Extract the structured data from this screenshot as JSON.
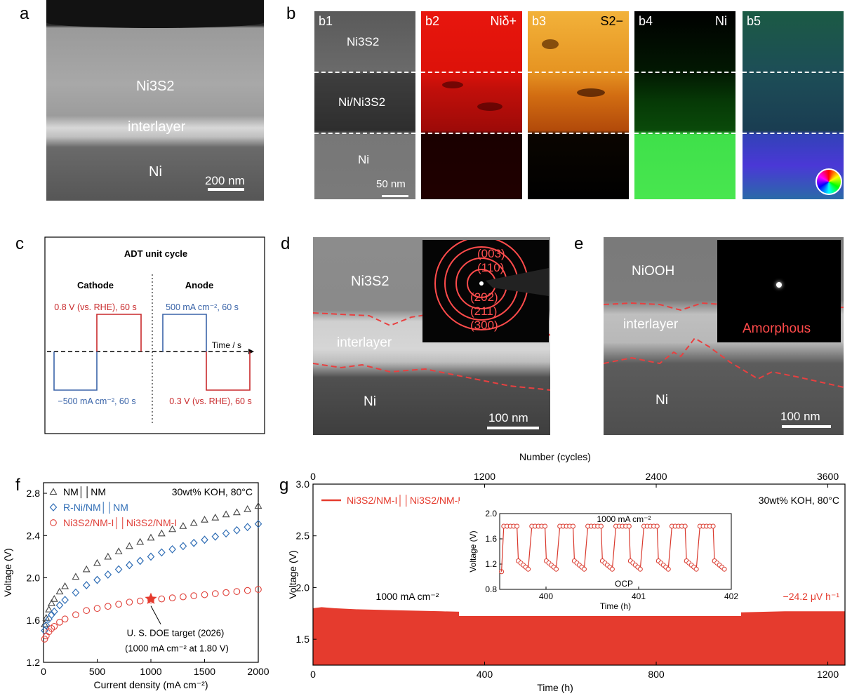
{
  "panels": {
    "a": "a",
    "b": "b",
    "c": "c",
    "d": "d",
    "e": "e",
    "f": "f",
    "g": "g"
  },
  "panel_a": {
    "layer_top": "Ni3S2",
    "layer_mid": "interlayer",
    "layer_bottom": "Ni",
    "scalebar": "200 nm"
  },
  "panel_b": {
    "tiles": [
      {
        "id": "b1",
        "label": "b1",
        "element": ""
      },
      {
        "id": "b2",
        "label": "b2",
        "element": "Niδ+"
      },
      {
        "id": "b3",
        "label": "b3",
        "element": "S2−"
      },
      {
        "id": "b4",
        "label": "b4",
        "element": "Ni"
      },
      {
        "id": "b5",
        "label": "b5",
        "element": ""
      }
    ],
    "b1_layers": [
      "Ni3S2",
      "Ni/Ni3S2",
      "Ni"
    ],
    "scalebar": "50 nm"
  },
  "panel_c": {
    "title": "ADT unit cycle",
    "cathode": "Cathode",
    "anode": "Anode",
    "time_axis": "Time / s",
    "cathode_high": "0.8 V (vs. RHE), 60 s",
    "cathode_low": "−500 mA cm⁻², 60 s",
    "anode_high": "500 mA cm⁻², 60 s",
    "anode_low": "0.3 V (vs. RHE), 60 s",
    "colors": {
      "red": "#c8292b",
      "blue": "#3a64a8"
    }
  },
  "panel_d": {
    "layer_top": "Ni3S2",
    "layer_mid": "interlayer",
    "layer_bottom": "Ni",
    "scalebar": "100 nm",
    "diffraction": [
      "(003)",
      "(110)",
      "(202)",
      "(211)",
      "(300)"
    ]
  },
  "panel_e": {
    "layer_top": "NiOOH",
    "layer_mid": "interlayer",
    "layer_bottom": "Ni",
    "scalebar": "100 nm",
    "inset": "Amorphous"
  },
  "chart_data": [
    {
      "type": "scatter",
      "panel": "f",
      "condition": "30wt% KOH, 80°C",
      "xlabel": "Current density (mA cm⁻²)",
      "ylabel": "Voltage (V)",
      "xlim": [
        0,
        2000
      ],
      "ylim": [
        1.2,
        2.9
      ],
      "xticks": [
        0,
        500,
        1000,
        1500,
        2000
      ],
      "yticks": [
        1.2,
        1.6,
        2.0,
        2.4,
        2.8
      ],
      "x": [
        10,
        25,
        50,
        75,
        100,
        150,
        200,
        300,
        400,
        500,
        600,
        700,
        800,
        900,
        1000,
        1100,
        1200,
        1300,
        1400,
        1500,
        1600,
        1700,
        1800,
        1900,
        2000
      ],
      "series": [
        {
          "name": "NM││NM",
          "marker": "triangle",
          "color": "#444444",
          "values": [
            1.56,
            1.62,
            1.7,
            1.76,
            1.8,
            1.87,
            1.92,
            2.01,
            2.08,
            2.14,
            2.2,
            2.25,
            2.3,
            2.34,
            2.38,
            2.42,
            2.46,
            2.49,
            2.52,
            2.55,
            2.57,
            2.6,
            2.62,
            2.65,
            2.68
          ]
        },
        {
          "name": "R-Ni/NM││NM",
          "marker": "diamond",
          "color": "#2f6db5",
          "values": [
            1.5,
            1.55,
            1.61,
            1.65,
            1.68,
            1.74,
            1.79,
            1.86,
            1.93,
            1.98,
            2.03,
            2.08,
            2.12,
            2.16,
            2.2,
            2.24,
            2.27,
            2.3,
            2.33,
            2.36,
            2.39,
            2.42,
            2.45,
            2.48,
            2.51
          ]
        },
        {
          "name": "Ni3S2/NM-I││Ni3S2/NM-I",
          "marker": "circle",
          "color": "#e0413a",
          "values": [
            1.42,
            1.45,
            1.49,
            1.52,
            1.54,
            1.58,
            1.61,
            1.65,
            1.69,
            1.71,
            1.73,
            1.75,
            1.77,
            1.78,
            1.79,
            1.8,
            1.81,
            1.82,
            1.83,
            1.84,
            1.85,
            1.86,
            1.87,
            1.88,
            1.89
          ]
        }
      ],
      "target": {
        "x": 1000,
        "y": 1.8,
        "label1": "U. S. DOE target (2026)",
        "label2": "(1000 mA cm⁻² at 1.80 V)"
      }
    },
    {
      "type": "area",
      "panel": "g",
      "condition": "30wt% KOH, 80°C",
      "legend": "Ni3S2/NM-I││Ni3S2/NM-I",
      "xlabel": "Time (h)",
      "ylabel": "Voltage (V)",
      "top_xlabel": "Number (cycles)",
      "xlim": [
        0,
        1240
      ],
      "ylim": [
        1.25,
        3.0
      ],
      "xticks": [
        0,
        400,
        800,
        1200
      ],
      "top_xticks": [
        0,
        1200,
        2400,
        3600
      ],
      "yticks": [
        1.5,
        2.0,
        2.5,
        3.0
      ],
      "x": [
        0,
        20,
        50,
        100,
        200,
        300,
        400,
        500,
        600,
        700,
        800,
        900,
        1000,
        1100,
        1240
      ],
      "upper": [
        1.8,
        1.81,
        1.8,
        1.79,
        1.78,
        1.77,
        1.76,
        1.76,
        1.75,
        1.75,
        1.75,
        1.76,
        1.76,
        1.77,
        1.77
      ],
      "lower": 1.25,
      "current_label": "1000 mA cm⁻²",
      "decay_label": "−24.2 μV h⁻¹",
      "color": "#e53b2e"
    },
    {
      "type": "line",
      "panel": "g-inset",
      "title": "1000 mA cm⁻²",
      "annotation": "OCP",
      "xlabel": "Time (h)",
      "ylabel": "Voltage (V)",
      "xlim": [
        399.5,
        402
      ],
      "ylim": [
        0.8,
        2.0
      ],
      "xticks": [
        400,
        401,
        402
      ],
      "yticks": [
        0.8,
        1.2,
        1.6,
        2.0
      ],
      "cycles": 8,
      "high": 1.8,
      "low_start": 1.25,
      "low_end": 1.12,
      "color": "#d9382c"
    }
  ]
}
